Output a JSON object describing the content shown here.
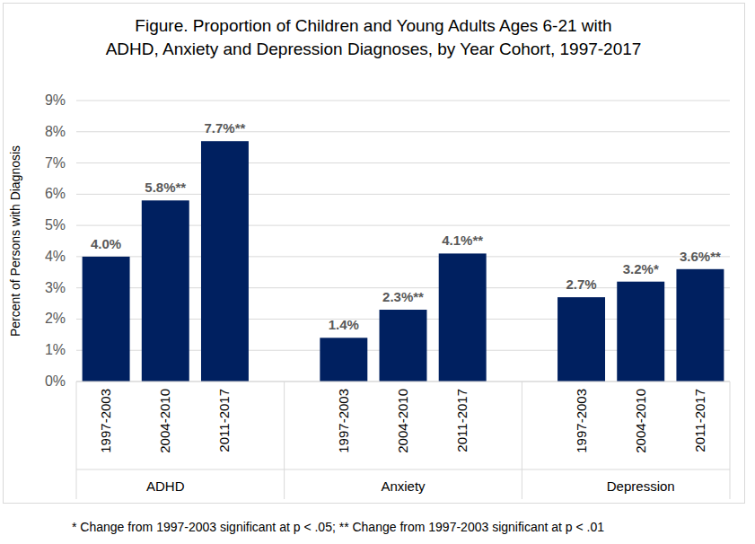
{
  "chart_data": {
    "type": "bar",
    "title": [
      "Figure.  Proportion of Children and Young Adults Ages 6-21 with",
      "ADHD, Anxiety and Depression Diagnoses, by Year Cohort, 1997-2017"
    ],
    "y_label": "Percent of Persons with Diagnosis",
    "groups": [
      "ADHD",
      "Anxiety",
      "Depression"
    ],
    "categories": [
      "1997-2003",
      "2004-2010",
      "2011-2017",
      "1997-2003",
      "2004-2010",
      "2011-2017",
      "1997-2003",
      "2004-2010",
      "2011-2017"
    ],
    "values": [
      4.0,
      5.8,
      7.7,
      1.4,
      2.3,
      4.1,
      2.7,
      3.2,
      3.6
    ],
    "value_labels": [
      "4.0%",
      "5.8%**",
      "7.7%**",
      "1.4%",
      "2.3%**",
      "4.1%**",
      "2.7%",
      "3.2%*",
      "3.6%**"
    ],
    "color": "#002060",
    "ylim": [
      0,
      9
    ],
    "yticks": [
      {
        "value": 0,
        "label": "0%"
      },
      {
        "value": 1,
        "label": "1%"
      },
      {
        "value": 2,
        "label": "2%"
      },
      {
        "value": 3,
        "label": "3%"
      },
      {
        "value": 4,
        "label": "4%"
      },
      {
        "value": 5,
        "label": "5%"
      },
      {
        "value": 6,
        "label": "6%"
      },
      {
        "value": 7,
        "label": "7%"
      },
      {
        "value": 8,
        "label": "8%"
      },
      {
        "value": 9,
        "label": "9%"
      }
    ],
    "grid": true,
    "data_labels": true,
    "note": "* Change from 1997-2003 significant at p < .05; ** Change from 1997-2003 significant at p < .01"
  }
}
